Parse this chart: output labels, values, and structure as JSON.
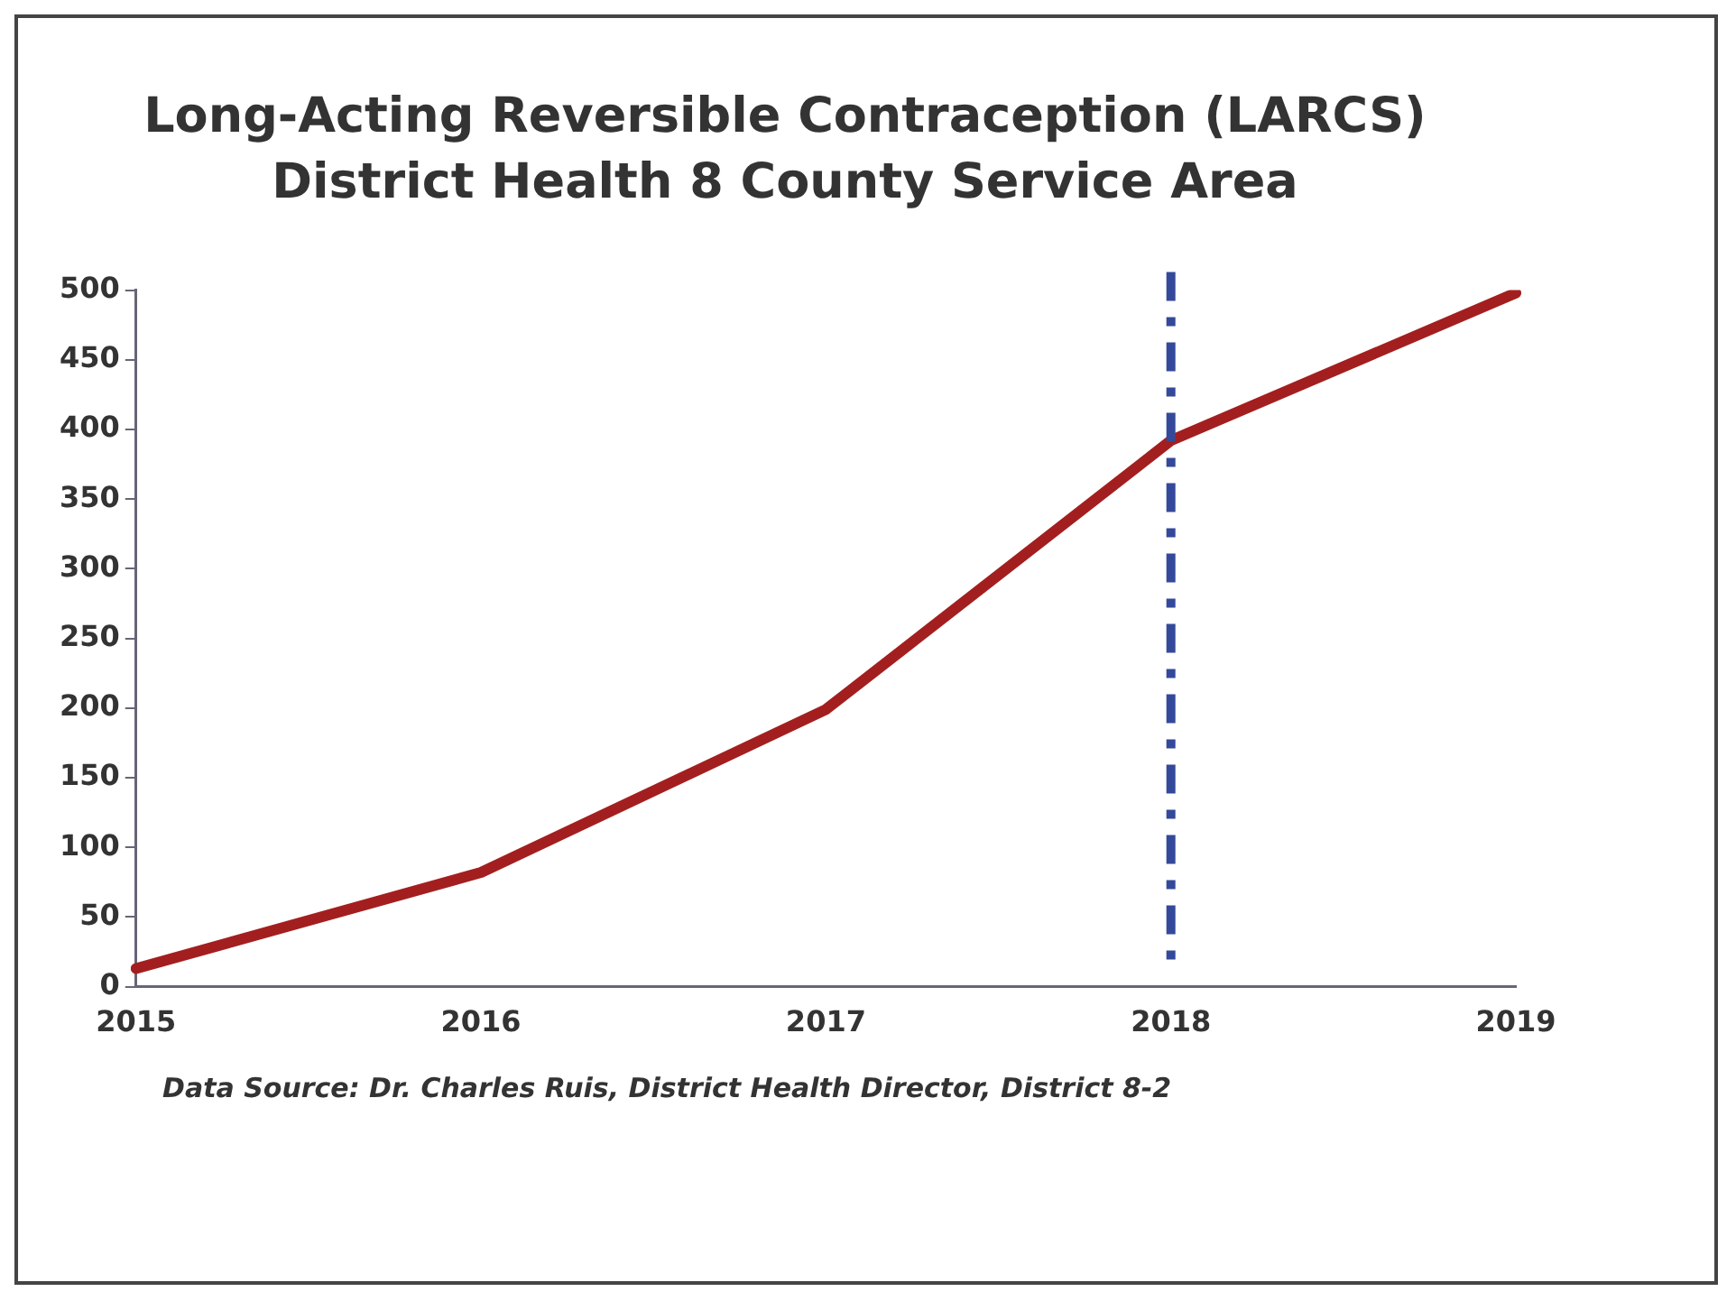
{
  "chart_data": {
    "type": "line",
    "title": "Long-Acting Reversible Contraception (LARCS)",
    "subtitle": "District Health 8 County Service Area",
    "categories": [
      "2015",
      "2016",
      "2017",
      "2018",
      "2019"
    ],
    "series": [
      {
        "color": "#a31f1f",
        "values": [
          13,
          82,
          199,
          392,
          498
        ]
      }
    ],
    "ylim": [
      0,
      500
    ],
    "yticks": [
      0,
      50,
      100,
      150,
      200,
      250,
      300,
      350,
      400,
      450,
      500
    ],
    "grid": false,
    "legend": false,
    "marker": "none",
    "line_style": "solid",
    "ref_lines": [
      {
        "axis": "x",
        "value": "2018",
        "color": "#34499a",
        "line_style": "dashed"
      }
    ],
    "annotations": [
      "Data Source:  Dr.  Charles Ruis, District Health Director, District 8-2"
    ]
  }
}
